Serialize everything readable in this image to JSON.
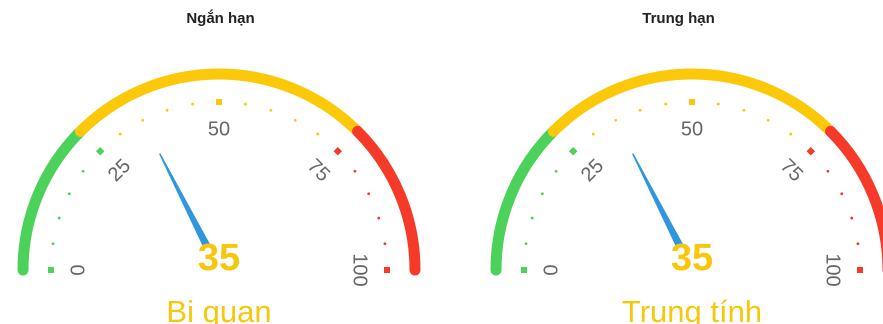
{
  "chart_data": [
    {
      "type": "gauge",
      "title": "Ngắn hạn",
      "value": 35,
      "min": 0,
      "max": 100,
      "ticks": [
        "0",
        "25",
        "50",
        "75",
        "100"
      ],
      "status_label": "Bi quan",
      "bands": [
        {
          "from": 0,
          "to": 25,
          "color": "#4cd15a"
        },
        {
          "from": 25,
          "to": 75,
          "color": "#fcc80a"
        },
        {
          "from": 75,
          "to": 100,
          "color": "#f53a2a"
        }
      ],
      "needle_color": "#2f96e0",
      "value_color": "#f8c70b"
    },
    {
      "type": "gauge",
      "title": "Trung hạn",
      "value": 35,
      "min": 0,
      "max": 100,
      "ticks": [
        "0",
        "25",
        "50",
        "75",
        "100"
      ],
      "status_label": "Trung tính",
      "bands": [
        {
          "from": 0,
          "to": 25,
          "color": "#4cd15a"
        },
        {
          "from": 25,
          "to": 75,
          "color": "#fcc80a"
        },
        {
          "from": 75,
          "to": 100,
          "color": "#f53a2a"
        }
      ],
      "needle_color": "#2f96e0",
      "value_color": "#f8c70b"
    }
  ]
}
